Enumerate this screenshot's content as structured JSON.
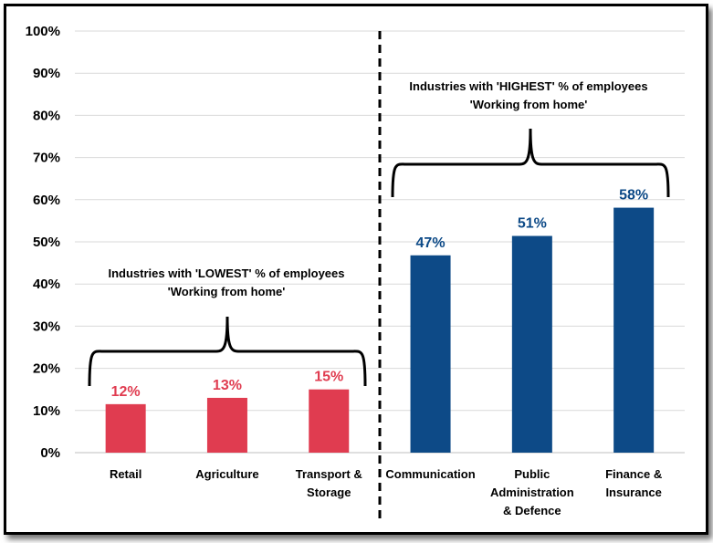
{
  "chart_data": {
    "type": "bar",
    "categories": [
      "Retail",
      "Agriculture",
      "Transport & Storage",
      "Communication",
      "Public Administration & Defence",
      "Finance & Insurance"
    ],
    "category_lines": [
      [
        "Retail"
      ],
      [
        "Agriculture"
      ],
      [
        "Transport &",
        "Storage"
      ],
      [
        "Communication"
      ],
      [
        "Public",
        "Administration",
        "& Defence"
      ],
      [
        "Finance &",
        "Insurance"
      ]
    ],
    "values": [
      12,
      13,
      15,
      47,
      51,
      58
    ],
    "plotted_values": [
      11.5,
      13,
      15,
      46.8,
      51.4,
      58.1
    ],
    "data_labels": [
      "12%",
      "13%",
      "15%",
      "47%",
      "51%",
      "58%"
    ],
    "bar_colors": [
      "#e03c50",
      "#e03c50",
      "#e03c50",
      "#0d4a87",
      "#0d4a87",
      "#0d4a87"
    ],
    "y_ticks": [
      "0%",
      "10%",
      "20%",
      "30%",
      "40%",
      "50%",
      "60%",
      "70%",
      "80%",
      "90%",
      "100%"
    ],
    "ylim": [
      0,
      100
    ],
    "grid": true,
    "title": "",
    "xlabel": "",
    "ylabel": "",
    "annotations": {
      "lowest": {
        "line1": "Industries with 'LOWEST' % of employees",
        "line2": "'Working from home'"
      },
      "highest": {
        "line1": "Industries with 'HIGHEST' % of employees",
        "line2": "'Working from home'"
      }
    },
    "colors": {
      "low": "#e03c50",
      "high": "#0d4a87",
      "grid": "#d9d9d9"
    }
  }
}
